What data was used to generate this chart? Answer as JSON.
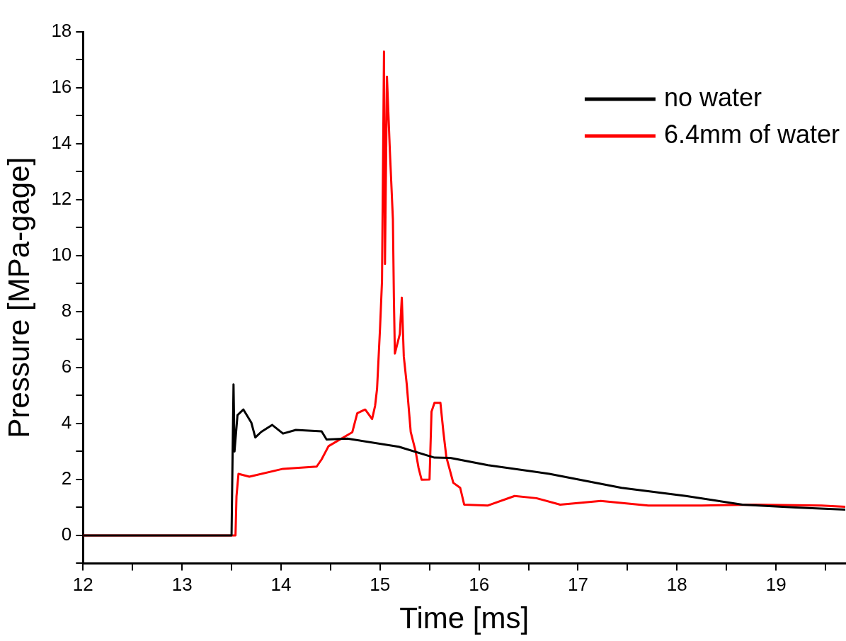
{
  "chart_data": {
    "type": "line",
    "xlabel": "Time [ms]",
    "ylabel": "Pressure [MPa-gage]",
    "xlim": [
      12,
      19.7
    ],
    "ylim": [
      -1,
      18
    ],
    "xticks": [
      12,
      {
        "value": 12.5,
        "label": null
      },
      13,
      {
        "value": 13.5,
        "label": null
      },
      14,
      {
        "value": 14.5,
        "label": null
      },
      15,
      {
        "value": 15.5,
        "label": null
      },
      16,
      {
        "value": 16.5,
        "label": null
      },
      17,
      {
        "value": 17.5,
        "label": null
      },
      18,
      {
        "value": 18.5,
        "label": null
      },
      19,
      {
        "value": 19.5,
        "label": null
      }
    ],
    "yticks": [
      {
        "value": -1,
        "label": null
      },
      0,
      {
        "value": 1,
        "label": null
      },
      2,
      {
        "value": 3,
        "label": null
      },
      4,
      {
        "value": 5,
        "label": null
      },
      6,
      {
        "value": 7,
        "label": null
      },
      8,
      {
        "value": 9,
        "label": null
      },
      10,
      {
        "value": 11,
        "label": null
      },
      12,
      {
        "value": 13,
        "label": null
      },
      14,
      {
        "value": 15,
        "label": null
      },
      16,
      {
        "value": 17,
        "label": null
      },
      18
    ],
    "grid": false,
    "legend": "top right",
    "marker": "none",
    "line_style": "solid",
    "series": [
      {
        "name": "no water",
        "color": "#000000",
        "x": [
          12,
          13.5,
          13.52,
          13.53,
          13.56,
          13.62,
          13.7,
          13.74,
          13.8,
          13.91,
          14.02,
          14.15,
          14.41,
          14.46,
          14.67,
          15.19,
          15.55,
          15.71,
          16.09,
          16.71,
          17.44,
          18.09,
          18.66,
          19.2,
          19.7
        ],
        "values": [
          0,
          0,
          5.4,
          3.0,
          4.3,
          4.5,
          4.03,
          3.5,
          3.7,
          3.95,
          3.64,
          3.77,
          3.72,
          3.43,
          3.46,
          3.17,
          2.78,
          2.77,
          2.51,
          2.2,
          1.7,
          1.41,
          1.1,
          1.0,
          0.92
        ]
      },
      {
        "name": "6.4mm of water",
        "color": "#ff0000",
        "x": [
          12,
          13.54,
          13.55,
          13.57,
          13.68,
          14.02,
          14.36,
          14.41,
          14.48,
          14.72,
          14.77,
          14.85,
          14.92,
          14.95,
          14.97,
          15.0,
          15.02,
          15.04,
          15.05,
          15.07,
          15.1,
          15.13,
          15.14,
          15.15,
          15.2,
          15.22,
          15.24,
          15.27,
          15.31,
          15.36,
          15.39,
          15.42,
          15.5,
          15.52,
          15.55,
          15.61,
          15.64,
          15.67,
          15.74,
          15.81,
          15.85,
          16.09,
          16.36,
          16.58,
          16.82,
          17.23,
          17.71,
          18.25,
          18.79,
          19.46,
          19.7
        ],
        "values": [
          0,
          0,
          1.4,
          2.2,
          2.1,
          2.38,
          2.46,
          2.72,
          3.19,
          3.69,
          4.37,
          4.5,
          4.16,
          4.63,
          5.24,
          7.4,
          9.1,
          17.3,
          9.7,
          16.4,
          13.7,
          11.3,
          8.5,
          6.5,
          7.2,
          8.5,
          6.4,
          5.4,
          3.7,
          3.0,
          2.4,
          1.99,
          2.0,
          4.42,
          4.74,
          4.74,
          3.7,
          2.8,
          1.88,
          1.7,
          1.1,
          1.07,
          1.41,
          1.33,
          1.1,
          1.23,
          1.07,
          1.07,
          1.1,
          1.07,
          1.02
        ]
      }
    ]
  }
}
